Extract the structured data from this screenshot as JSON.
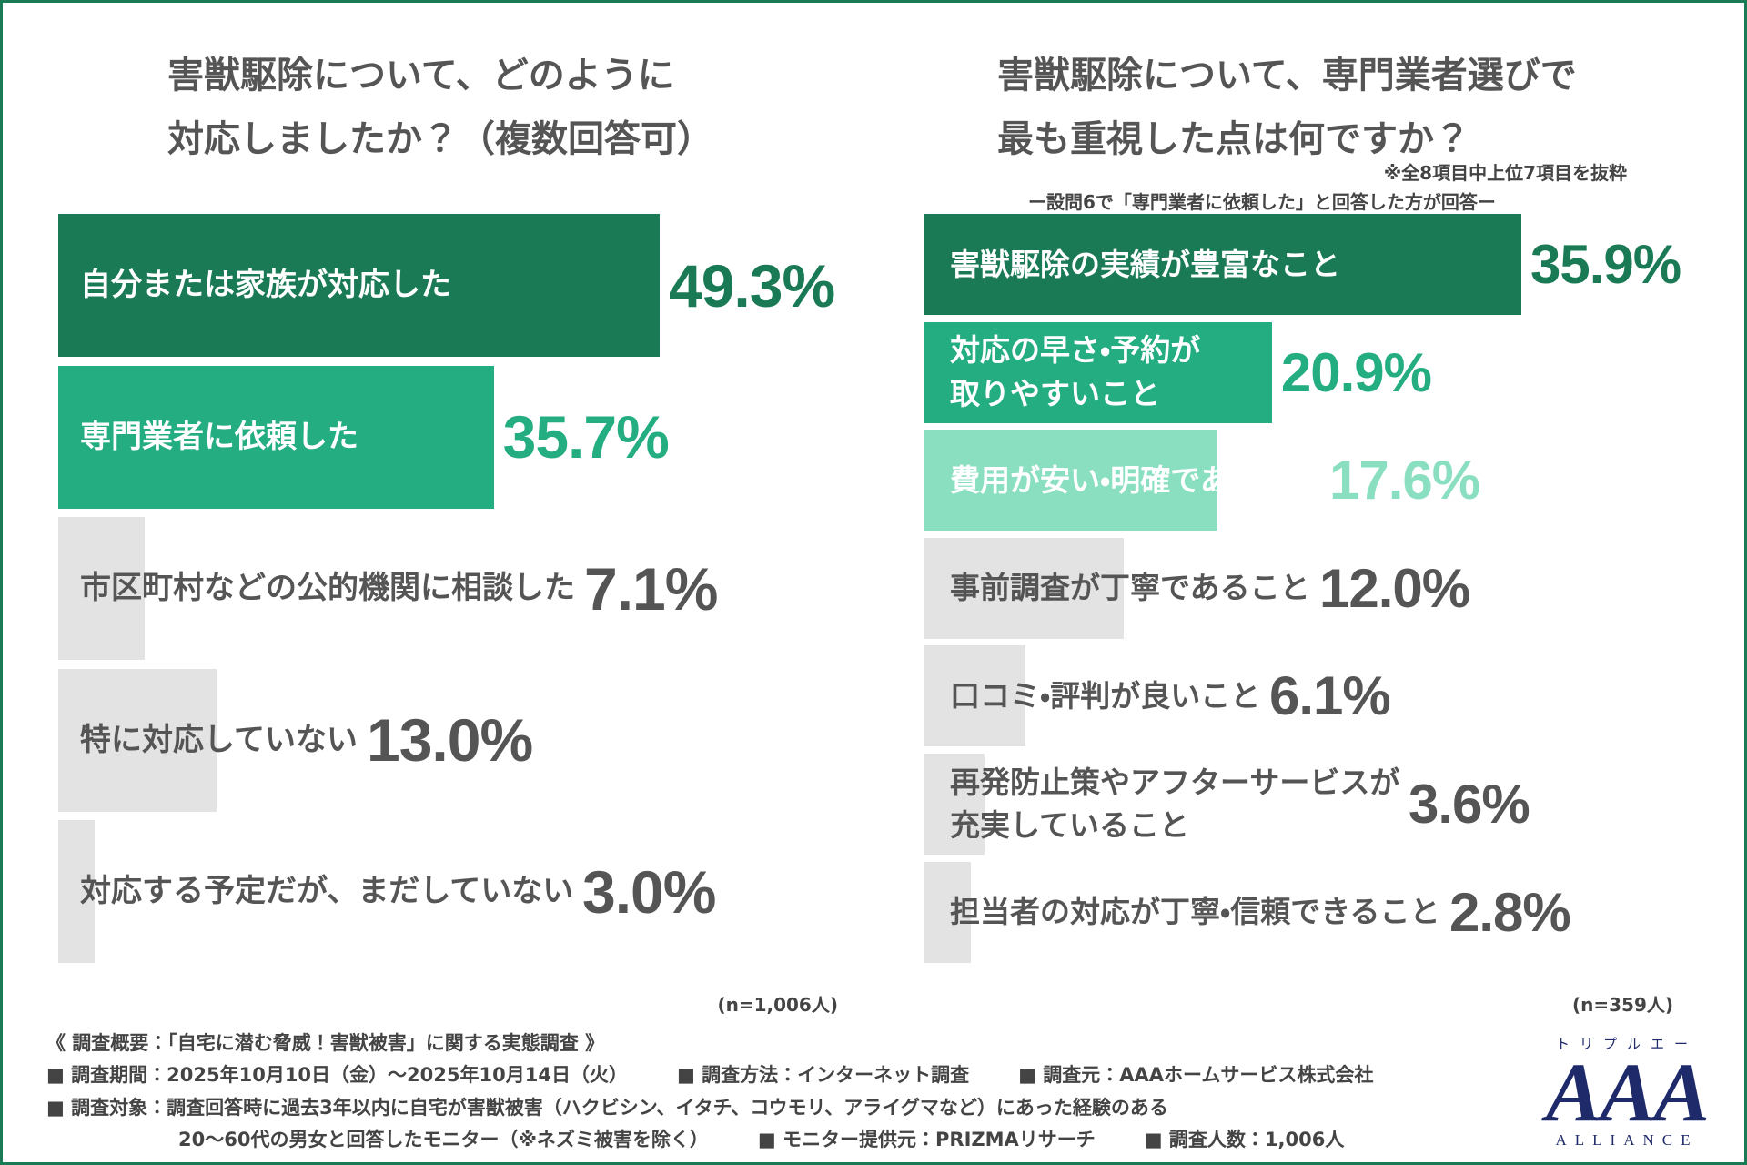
{
  "chart_data": [
    {
      "type": "hbar",
      "title": "害獣駆除について、どのように\n対応しましたか？（複数回答可）",
      "categories": [
        "自分または家族が対応した",
        "専門業者に依頼した",
        "市区町村などの公的機関に相談した",
        "特に対応していない",
        "対応する予定だが、まだしていない"
      ],
      "values": [
        49.3,
        35.7,
        7.1,
        13.0,
        3.0
      ],
      "value_labels": [
        "49.3%",
        "35.7%",
        "7.1%",
        "13.0%",
        "3.0%"
      ],
      "colors": [
        "#1a7a56",
        "#25ad82",
        "#e3e3e3",
        "#e3e3e3",
        "#e3e3e3"
      ],
      "value_colors": [
        "#1a7a56",
        "#25ad82",
        "#555555",
        "#555555",
        "#555555"
      ],
      "sample": "(n=1,006人)"
    },
    {
      "type": "hbar",
      "title": "害獣駆除について、専門業者選びで\n最も重視した点は何ですか？",
      "note": "※全8項目中上位7項目を抜粋",
      "subtitle": "ー設問6で「専門業者に依頼した」と回答した方が回答ー",
      "categories": [
        "害獣駆除の実績が豊富なこと",
        "対応の早さ・予約が\n取りやすいこと",
        "費用が安い・明確であること",
        "事前調査が丁寧であること",
        "口コミ・評判が良いこと",
        "再発防止策やアフターサービスが\n充実していること",
        "担当者の対応が丁寧・信頼できること"
      ],
      "values": [
        35.9,
        20.9,
        17.6,
        12.0,
        6.1,
        3.6,
        2.8
      ],
      "value_labels": [
        "35.9%",
        "20.9%",
        "17.6%",
        "12.0%",
        "6.1%",
        "3.6%",
        "2.8%"
      ],
      "colors": [
        "#1a7a56",
        "#25ad82",
        "#8adfc1",
        "#e3e3e3",
        "#e3e3e3",
        "#e3e3e3",
        "#e3e3e3"
      ],
      "value_colors": [
        "#1a7a56",
        "#25ad82",
        "#8adfc1",
        "#555555",
        "#555555",
        "#555555",
        "#555555"
      ],
      "sample": "(n=359人)"
    }
  ],
  "survey": {
    "heading": "《 調査概要：「自宅に潜む脅威！害獣被害」に関する実態調査 》",
    "lines": [
      [
        "■ 調査期間：2025年10月10日（金）〜2025年10月14日（火）",
        "■ 調査方法：インターネット調査",
        "■ 調査元：AAAホームサービス株式会社"
      ],
      [
        "■ 調査対象：調査回答時に過去3年以内に自宅が害獣被害（ハクビシン、イタチ、コウモリ、アライグマなど）にあった経験のある"
      ],
      [
        "20〜60代の男女と回答したモニター（※ネズミ被害を除く）",
        "■ モニター提供元：PRIZMAリサーチ",
        "■ 調査人数：1,006人"
      ]
    ]
  },
  "logo": {
    "kana": "トリプルエー",
    "mark": "AAA",
    "name": "ALLIANCE"
  }
}
